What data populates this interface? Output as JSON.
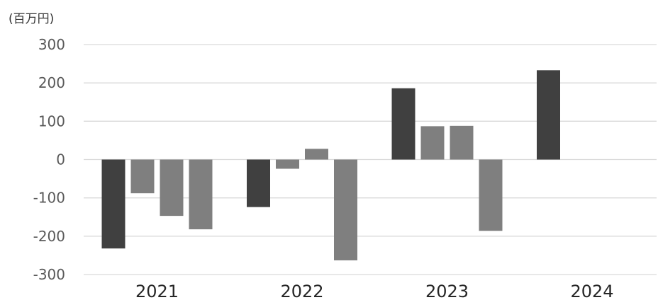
{
  "chart_data": {
    "type": "bar",
    "unit_label": "(百万円)",
    "categories": [
      "2021",
      "2022",
      "2023",
      "2024"
    ],
    "ylim": [
      -300,
      300
    ],
    "yticks": [
      300,
      200,
      100,
      0,
      -100,
      -200,
      -300
    ],
    "grid": true,
    "legend": "none",
    "colors": {
      "dark": "#404040",
      "light": "#7f7f7f"
    },
    "groups": [
      {
        "category": "2021",
        "values": [
          -232,
          -88,
          -147,
          -182
        ]
      },
      {
        "category": "2022",
        "values": [
          -124,
          -24,
          28,
          -263
        ]
      },
      {
        "category": "2023",
        "values": [
          186,
          87,
          88,
          -186
        ]
      },
      {
        "category": "2024",
        "values": [
          233
        ]
      }
    ]
  }
}
